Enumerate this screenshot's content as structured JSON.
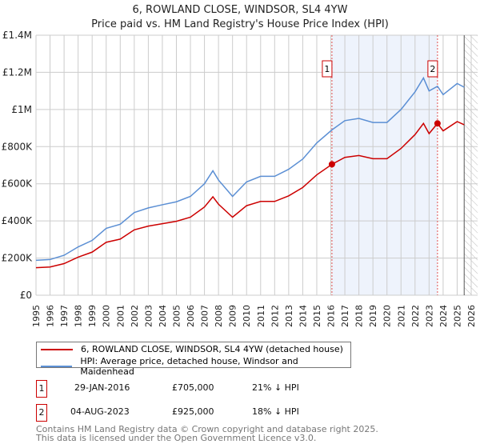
{
  "chart_data": {
    "type": "line",
    "title": "6, ROWLAND CLOSE, WINDSOR, SL4 4YW",
    "subtitle": "Price paid vs. HM Land Registry's House Price Index (HPI)",
    "xlim": [
      1995,
      2026
    ],
    "ylim": [
      0,
      1400000
    ],
    "y_ticks": [
      {
        "v": 0,
        "l": "£0"
      },
      {
        "v": 200000,
        "l": "£200K"
      },
      {
        "v": 400000,
        "l": "£400K"
      },
      {
        "v": 600000,
        "l": "£600K"
      },
      {
        "v": 800000,
        "l": "£800K"
      },
      {
        "v": 1000000,
        "l": "£1M"
      },
      {
        "v": 1200000,
        "l": "£1.2M"
      },
      {
        "v": 1400000,
        "l": "£1.4M"
      }
    ],
    "x_ticks": [
      "1995",
      "1996",
      "1997",
      "1998",
      "1999",
      "2000",
      "2001",
      "2002",
      "2003",
      "2004",
      "2005",
      "2006",
      "2007",
      "2008",
      "2009",
      "2010",
      "2011",
      "2012",
      "2013",
      "2014",
      "2015",
      "2016",
      "2017",
      "2018",
      "2019",
      "2020",
      "2021",
      "2022",
      "2023",
      "2024",
      "2025",
      "2026"
    ],
    "grid": true,
    "series": [
      {
        "name": "6, ROWLAND CLOSE, WINDSOR, SL4 4YW (detached house)",
        "color": "#cc0000",
        "x": [
          1995,
          1996,
          1997,
          1998,
          1999,
          2000,
          2001,
          2002,
          2003,
          2004,
          2005,
          2006,
          2007,
          2007.6,
          2008,
          2009,
          2010,
          2011,
          2012,
          2013,
          2014,
          2015,
          2016.08,
          2017,
          2018,
          2019,
          2020,
          2021,
          2022,
          2022.6,
          2023,
          2023.6,
          2024,
          2025,
          2025.5
        ],
        "y": [
          148000,
          152000,
          170000,
          205000,
          232000,
          285000,
          302000,
          352000,
          372000,
          385000,
          398000,
          420000,
          475000,
          530000,
          490000,
          420000,
          482000,
          505000,
          505000,
          535000,
          580000,
          648000,
          705000,
          742000,
          752000,
          735000,
          735000,
          790000,
          865000,
          925000,
          870000,
          925000,
          885000,
          935000,
          918000
        ]
      },
      {
        "name": "HPI: Average price, detached house, Windsor and Maidenhead",
        "color": "#5b8fd4",
        "x": [
          1995,
          1996,
          1997,
          1998,
          1999,
          2000,
          2001,
          2002,
          2003,
          2004,
          2005,
          2006,
          2007,
          2007.6,
          2008,
          2009,
          2010,
          2011,
          2012,
          2013,
          2014,
          2015,
          2016.08,
          2017,
          2018,
          2019,
          2020,
          2021,
          2022,
          2022.6,
          2023,
          2023.6,
          2024,
          2025,
          2025.5
        ],
        "y": [
          188000,
          192000,
          215000,
          260000,
          295000,
          360000,
          382000,
          445000,
          470000,
          487000,
          503000,
          532000,
          600000,
          670000,
          620000,
          532000,
          610000,
          640000,
          640000,
          678000,
          733000,
          820000,
          890000,
          940000,
          952000,
          930000,
          930000,
          1000000,
          1095000,
          1170000,
          1100000,
          1125000,
          1080000,
          1140000,
          1120000
        ]
      }
    ],
    "sales": [
      {
        "label": "1",
        "x": 2016.08,
        "y": 705000,
        "date": "29-JAN-2016",
        "price": "£705,000",
        "delta": "21% ↓ HPI"
      },
      {
        "label": "2",
        "x": 2023.6,
        "y": 925000,
        "date": "04-AUG-2023",
        "price": "£925,000",
        "delta": "18% ↓ HPI"
      }
    ],
    "legend_placement": "below"
  },
  "footer": {
    "line1": "Contains HM Land Registry data © Crown copyright and database right 2025.",
    "line2": "This data is licensed under the Open Government Licence v3.0."
  }
}
